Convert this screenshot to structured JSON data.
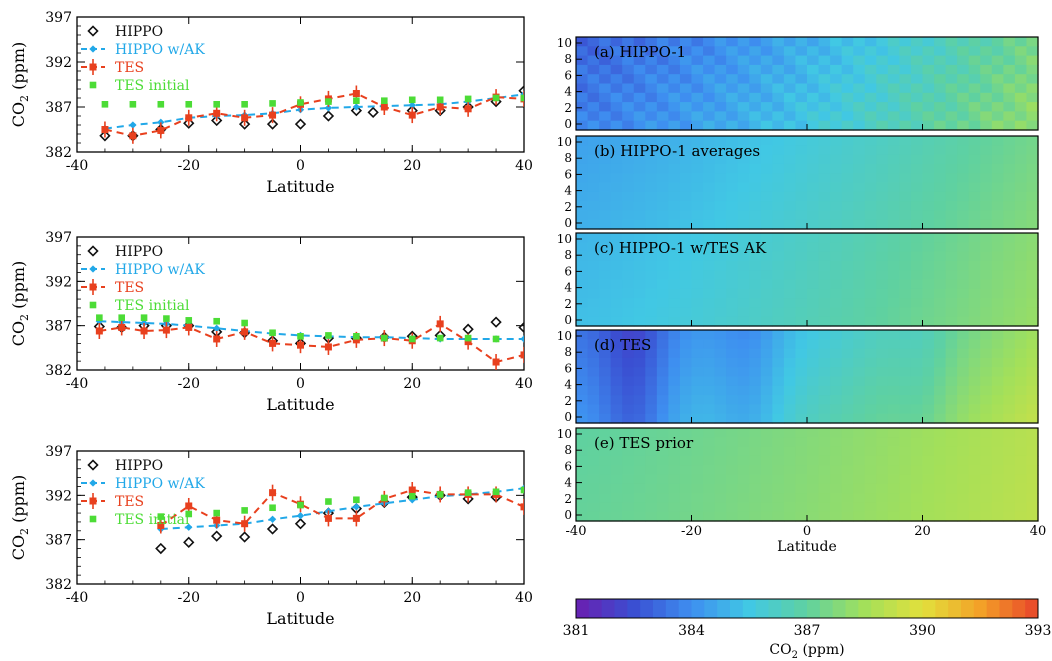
{
  "chart_data": [
    {
      "type": "line",
      "panel": "left-top",
      "xlabel": "Latitude",
      "ylabel_main": "CO",
      "ylabel_sub": "2",
      "ylabel_unit": " (ppm)",
      "xlim": [
        -40,
        40
      ],
      "ylim": [
        382,
        397
      ],
      "xticks": [
        "-40",
        "-20",
        "0",
        "20",
        "40"
      ],
      "yticks": [
        "382",
        "387",
        "392",
        "397"
      ],
      "legend_position": "top-left",
      "series": [
        {
          "name": "HIPPO",
          "x": [
            -35,
            -30,
            -25,
            -20,
            -15,
            -10,
            -5,
            0,
            5,
            10,
            13,
            20,
            25,
            30,
            35,
            40
          ],
          "y": [
            383.8,
            383.8,
            384.5,
            385.2,
            385.5,
            385.1,
            385.1,
            385.1,
            386.0,
            386.6,
            386.4,
            386.6,
            386.6,
            387.0,
            387.6,
            388.8
          ]
        },
        {
          "name": "HIPPO w/AK",
          "x": [
            -35,
            -30,
            -25,
            -20,
            -15,
            -10,
            -5,
            0,
            5,
            10,
            15,
            20,
            25,
            30,
            35,
            40
          ],
          "y": [
            384.6,
            385.0,
            385.3,
            385.8,
            386.0,
            386.1,
            386.3,
            386.7,
            386.9,
            387.0,
            387.1,
            387.2,
            387.3,
            387.6,
            388.0,
            388.4
          ]
        },
        {
          "name": "TES",
          "x": [
            -35,
            -30,
            -25,
            -20,
            -15,
            -10,
            -5,
            0,
            5,
            10,
            15,
            20,
            25,
            30,
            35,
            40
          ],
          "y": [
            384.5,
            383.8,
            384.4,
            385.8,
            386.3,
            385.8,
            386.1,
            387.3,
            387.9,
            388.5,
            387.0,
            386.1,
            387.0,
            386.8,
            388.1,
            387.9
          ]
        },
        {
          "name": "TES initial",
          "x": [
            -35,
            -30,
            -25,
            -20,
            -15,
            -10,
            -5,
            0,
            5,
            10,
            15,
            20,
            25,
            30,
            35,
            40
          ],
          "y": [
            387.3,
            387.3,
            387.3,
            387.3,
            387.3,
            387.3,
            387.4,
            387.5,
            387.6,
            387.7,
            387.7,
            387.8,
            387.8,
            387.9,
            388.0,
            388.0
          ]
        }
      ]
    },
    {
      "type": "line",
      "panel": "left-middle",
      "xlabel": "Latitude",
      "ylabel_main": "CO",
      "ylabel_sub": "2",
      "ylabel_unit": " (ppm)",
      "xlim": [
        -40,
        40
      ],
      "ylim": [
        382,
        397
      ],
      "xticks": [
        "-40",
        "-20",
        "0",
        "20",
        "40"
      ],
      "yticks": [
        "382",
        "387",
        "392",
        "397"
      ],
      "legend_position": "top-left",
      "series": [
        {
          "name": "HIPPO",
          "x": [
            -36,
            -32,
            -28,
            -24,
            -20,
            -15,
            -10,
            -5,
            0,
            5,
            10,
            15,
            20,
            25,
            30,
            35,
            40
          ],
          "y": [
            386.9,
            386.8,
            387.0,
            387.0,
            387.0,
            386.3,
            386.2,
            385.3,
            385.0,
            385.6,
            385.6,
            385.7,
            385.8,
            385.9,
            386.6,
            387.4,
            386.8
          ]
        },
        {
          "name": "HIPPO w/AK",
          "x": [
            -36,
            -32,
            -28,
            -24,
            -20,
            -15,
            -10,
            -5,
            0,
            5,
            10,
            15,
            20,
            25,
            30,
            35,
            40
          ],
          "y": [
            387.5,
            387.4,
            387.3,
            387.2,
            387.0,
            386.7,
            386.4,
            386.1,
            385.9,
            385.8,
            385.7,
            385.7,
            385.6,
            385.5,
            385.5,
            385.5,
            385.5
          ]
        },
        {
          "name": "TES",
          "x": [
            -36,
            -32,
            -28,
            -24,
            -20,
            -15,
            -10,
            -5,
            0,
            5,
            10,
            15,
            20,
            25,
            30,
            35,
            40
          ],
          "y": [
            386.4,
            386.8,
            386.4,
            386.5,
            386.8,
            385.5,
            386.3,
            385.0,
            384.8,
            384.6,
            385.4,
            385.6,
            385.3,
            387.2,
            385.2,
            382.9,
            383.7
          ]
        },
        {
          "name": "TES initial",
          "x": [
            -36,
            -32,
            -28,
            -24,
            -20,
            -15,
            -10,
            -5,
            0,
            5,
            10,
            15,
            20,
            25,
            30,
            35
          ],
          "y": [
            387.9,
            387.9,
            387.9,
            387.8,
            387.6,
            387.5,
            387.3,
            386.2,
            385.8,
            385.9,
            385.8,
            385.6,
            385.5,
            385.6,
            385.6,
            385.5
          ]
        }
      ]
    },
    {
      "type": "line",
      "panel": "left-bottom",
      "xlabel": "Latitude",
      "ylabel_main": "CO",
      "ylabel_sub": "2",
      "ylabel_unit": " (ppm)",
      "xlim": [
        -40,
        40
      ],
      "ylim": [
        382,
        397
      ],
      "xticks": [
        "-40",
        "-20",
        "0",
        "20",
        "40"
      ],
      "yticks": [
        "382",
        "387",
        "392",
        "397"
      ],
      "legend_position": "top-left",
      "series": [
        {
          "name": "HIPPO",
          "x": [
            -25,
            -20,
            -15,
            -10,
            -5,
            0,
            5,
            10,
            15,
            20,
            25,
            30,
            35
          ],
          "y": [
            386.0,
            386.7,
            387.4,
            387.3,
            388.2,
            388.8,
            390.0,
            390.5,
            391.2,
            391.8,
            392.0,
            391.6,
            391.8
          ]
        },
        {
          "name": "HIPPO w/AK",
          "x": [
            -25,
            -20,
            -15,
            -10,
            -5,
            0,
            5,
            10,
            15,
            20,
            25,
            30,
            35,
            40
          ],
          "y": [
            388.2,
            388.4,
            388.6,
            388.8,
            389.3,
            389.7,
            390.2,
            390.7,
            391.1,
            391.5,
            391.9,
            392.1,
            392.4,
            392.8
          ]
        },
        {
          "name": "TES",
          "x": [
            -25,
            -20,
            -15,
            -10,
            -5,
            0,
            5,
            10,
            15,
            20,
            25,
            30,
            35,
            40
          ],
          "y": [
            388.6,
            390.8,
            389.2,
            388.8,
            392.3,
            391.0,
            389.4,
            389.4,
            391.6,
            392.6,
            392.1,
            392.1,
            392.1,
            390.7
          ]
        },
        {
          "name": "TES initial",
          "x": [
            -25,
            -20,
            -15,
            -10,
            -5,
            0,
            5,
            10,
            15,
            20,
            25,
            30,
            35,
            40
          ],
          "y": [
            389.6,
            389.9,
            390.0,
            390.3,
            390.6,
            390.9,
            391.3,
            391.5,
            391.7,
            391.9,
            392.1,
            392.3,
            392.4,
            392.6
          ]
        }
      ]
    },
    {
      "type": "heatmap",
      "panel": "right-stack",
      "xlabel": "Latitude",
      "xlim": [
        -40,
        40
      ],
      "ylim": [
        0,
        10
      ],
      "xticks": [
        "-40",
        "-20",
        "0",
        "20",
        "40"
      ],
      "yticks": [
        "0",
        "2",
        "4",
        "6",
        "8",
        "10"
      ],
      "panels": [
        {
          "label": "(a) HIPPO-1",
          "mean": 385.6,
          "south_low": 383.0,
          "north_high": 387.5
        },
        {
          "label": "(b) HIPPO-1 averages",
          "mean": 385.8,
          "south_low": 384.5,
          "north_high": 387.5
        },
        {
          "label": "(c) HIPPO-1 w/TES AK",
          "mean": 386.0,
          "south_low": 385.0,
          "north_high": 388.0
        },
        {
          "label": "(d) TES",
          "mean": 386.3,
          "south_low": 383.5,
          "north_high": 388.5
        },
        {
          "label": "(e) TES prior",
          "mean": 387.5,
          "south_low": 387.0,
          "north_high": 389.0
        }
      ],
      "colorbar": {
        "label_main": "CO",
        "label_sub": "2",
        "label_unit": " (ppm)",
        "min": 381,
        "max": 393,
        "ticks": [
          "381",
          "384",
          "387",
          "390",
          "393"
        ],
        "colors": [
          "#6a1fb0",
          "#3a4fd2",
          "#3e8ff0",
          "#41c8e4",
          "#5fd1a0",
          "#a3e05a",
          "#e2e03c",
          "#f3a128",
          "#e8452a"
        ]
      }
    }
  ]
}
